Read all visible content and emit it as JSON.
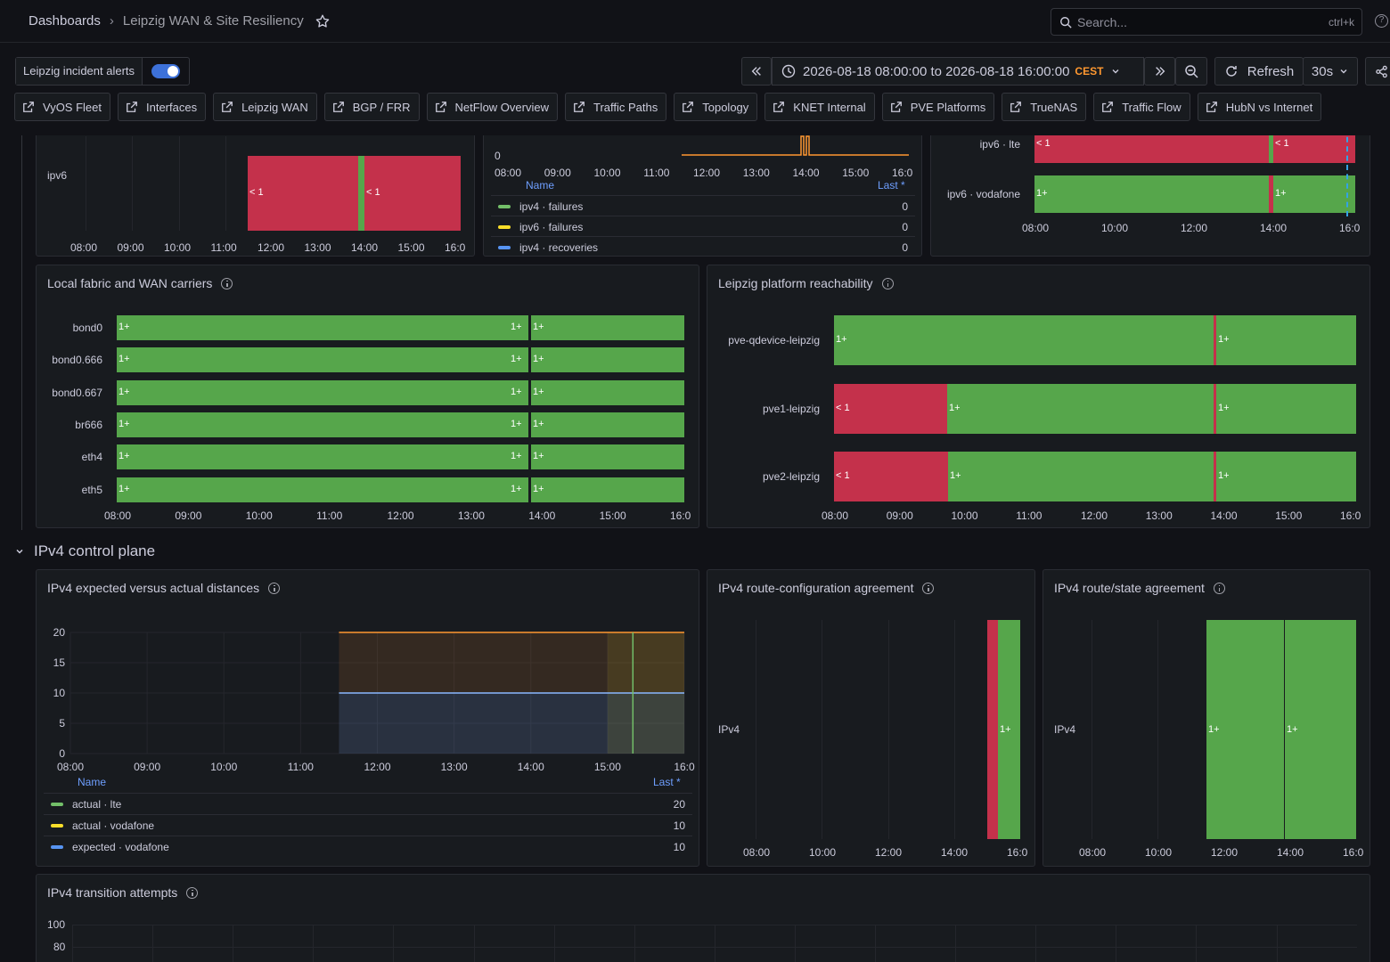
{
  "header": {
    "breadcrumb_root": "Dashboards",
    "breadcrumb_current": "Leipzig WAN & Site Resiliency",
    "search_placeholder": "Search...",
    "search_shortcut": "ctrl+k"
  },
  "controls": {
    "alerts_label": "Leipzig incident alerts",
    "alerts_enabled": true,
    "time_range": "2026-08-18 08:00:00 to 2026-08-18 16:00:00",
    "timezone": "CEST",
    "refresh_label": "Refresh",
    "refresh_interval": "30s"
  },
  "links": [
    "VyOS Fleet",
    "Interfaces",
    "Leipzig WAN",
    "BGP / FRR",
    "NetFlow Overview",
    "Traffic Paths",
    "Topology",
    "KNET Internal",
    "PVE Platforms",
    "TrueNAS",
    "Traffic Flow",
    "HubN vs Internet"
  ],
  "top_left_panel": {
    "row_label": "ipv6",
    "x_ticks": [
      "08:00",
      "09:00",
      "10:00",
      "11:00",
      "12:00",
      "13:00",
      "14:00",
      "15:00",
      "16:0"
    ],
    "bar_labels": [
      "< 1",
      "< 1"
    ]
  },
  "top_mid_panel": {
    "y_tick": "0",
    "x_ticks": [
      "08:00",
      "09:00",
      "10:00",
      "11:00",
      "12:00",
      "13:00",
      "14:00",
      "15:00",
      "16:0"
    ],
    "legend_name": "Name",
    "legend_last": "Last *",
    "legend": [
      {
        "name": "ipv4 · failures",
        "value": "0",
        "color": "#73bf69"
      },
      {
        "name": "ipv6 · failures",
        "value": "0",
        "color": "#fade2a"
      },
      {
        "name": "ipv4 · recoveries",
        "value": "0",
        "color": "#5794f2"
      }
    ]
  },
  "top_right_panel": {
    "rows": [
      {
        "label": "ipv6 · lte",
        "bars": [
          "< 1",
          "< 1"
        ]
      },
      {
        "label": "ipv6 · vodafone",
        "bars": [
          "1+",
          "1+"
        ]
      }
    ],
    "x_ticks": [
      "08:00",
      "10:00",
      "12:00",
      "14:00",
      "16:0"
    ]
  },
  "fabric_panel": {
    "title": "Local fabric and WAN carriers",
    "rows": [
      "bond0",
      "bond0.666",
      "bond0.667",
      "br666",
      "eth4",
      "eth5"
    ],
    "bar_label": "1+",
    "x_ticks": [
      "08:00",
      "09:00",
      "10:00",
      "11:00",
      "12:00",
      "13:00",
      "14:00",
      "15:00",
      "16:0"
    ]
  },
  "reach_panel": {
    "title": "Leipzig platform reachability",
    "rows": [
      {
        "label": "pve-qdevice-leipzig",
        "bars": [
          "1+",
          "1+"
        ]
      },
      {
        "label": "pve1-leipzig",
        "bars": [
          "< 1",
          "1+",
          "1+"
        ]
      },
      {
        "label": "pve2-leipzig",
        "bars": [
          "< 1",
          "1+",
          "1+"
        ]
      }
    ],
    "x_ticks": [
      "08:00",
      "09:00",
      "10:00",
      "11:00",
      "12:00",
      "13:00",
      "14:00",
      "15:00",
      "16:0"
    ]
  },
  "section": {
    "title": "IPv4 control plane"
  },
  "distances_panel": {
    "title": "IPv4 expected versus actual distances",
    "y_ticks": [
      "20",
      "15",
      "10",
      "5",
      "0"
    ],
    "x_ticks": [
      "08:00",
      "09:00",
      "10:00",
      "11:00",
      "12:00",
      "13:00",
      "14:00",
      "15:00",
      "16:0"
    ],
    "legend_name": "Name",
    "legend_last": "Last *",
    "legend": [
      {
        "name": "actual · lte",
        "value": "20",
        "color": "#73bf69"
      },
      {
        "name": "actual · vodafone",
        "value": "10",
        "color": "#fade2a"
      },
      {
        "name": "expected · vodafone",
        "value": "10",
        "color": "#5794f2"
      }
    ]
  },
  "route_config_panel": {
    "title": "IPv4 route-configuration agreement",
    "row_label": "IPv4",
    "bar_label": "1+",
    "x_ticks": [
      "08:00",
      "10:00",
      "12:00",
      "14:00",
      "16:0"
    ]
  },
  "route_state_panel": {
    "title": "IPv4 route/state agreement",
    "row_label": "IPv4",
    "bar_labels": [
      "1+",
      "1+"
    ],
    "x_ticks": [
      "08:00",
      "10:00",
      "12:00",
      "14:00",
      "16:0"
    ]
  },
  "transition_panel": {
    "title": "IPv4 transition attempts",
    "y_ticks": [
      "100",
      "80"
    ]
  },
  "chart_data": [
    {
      "type": "line",
      "title": "IPv4 expected versus actual distances",
      "x": [
        "08:00",
        "09:00",
        "10:00",
        "11:00",
        "12:00",
        "13:00",
        "14:00",
        "15:00",
        "16:00"
      ],
      "ylim": [
        0,
        20
      ],
      "series": [
        {
          "name": "actual · lte",
          "values": [
            null,
            null,
            null,
            null,
            20,
            20,
            20,
            20,
            20
          ]
        },
        {
          "name": "actual · vodafone",
          "values": [
            null,
            null,
            null,
            null,
            10,
            10,
            10,
            10,
            10
          ]
        },
        {
          "name": "expected · vodafone",
          "values": [
            null,
            null,
            null,
            null,
            10,
            10,
            10,
            10,
            10
          ]
        }
      ]
    }
  ]
}
